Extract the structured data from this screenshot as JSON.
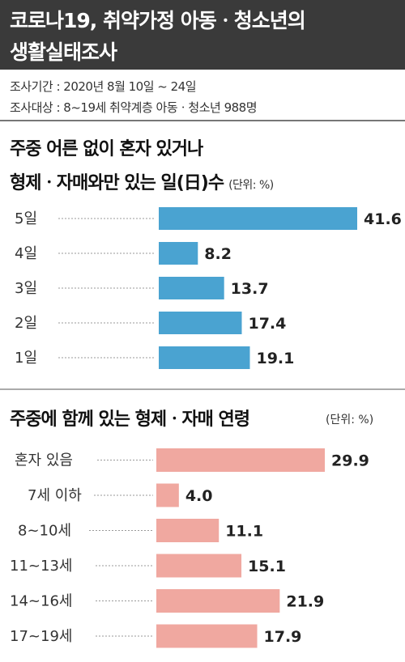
{
  "header": {
    "title_line1": "코로나19, 취약가정 아동ㆍ청소년의",
    "title_line2": "생활실태조사"
  },
  "meta": {
    "period": "조사기간 : 2020년 8월 10일 ~ 24일",
    "target": "조사대상 : 8~19세 취약계층 아동ㆍ청소년 988명"
  },
  "colors": {
    "header_bg": "#3a3a3a",
    "chart1_bar": "#4aa3d1",
    "chart2_bar": "#f0a8a0"
  },
  "chart_data": [
    {
      "type": "bar",
      "orientation": "horizontal",
      "title_line1": "주중 어른 없이 혼자 있거나",
      "title_line2": "형제ㆍ자매와만 있는 일(日)수",
      "unit": "(단위: %)",
      "categories": [
        "5일",
        "4일",
        "3일",
        "2일",
        "1일"
      ],
      "values": [
        41.6,
        8.2,
        13.7,
        17.4,
        19.1
      ],
      "value_labels": [
        "41.6",
        "8.2",
        "13.7",
        "17.4",
        "19.1"
      ],
      "xlim": [
        0,
        41.6
      ]
    },
    {
      "type": "bar",
      "orientation": "horizontal",
      "title": "주중에 함께 있는 형제ㆍ자매 연령",
      "unit": "(단위: %)",
      "categories": [
        "혼자 있음",
        "7세 이하",
        "8~10세",
        "11~13세",
        "14~16세",
        "17~19세"
      ],
      "values": [
        29.9,
        4.0,
        11.1,
        15.1,
        21.9,
        17.9
      ],
      "value_labels": [
        "29.9",
        "4.0",
        "11.1",
        "15.1",
        "21.9",
        "17.9"
      ],
      "xlim": [
        0,
        29.9
      ]
    }
  ]
}
